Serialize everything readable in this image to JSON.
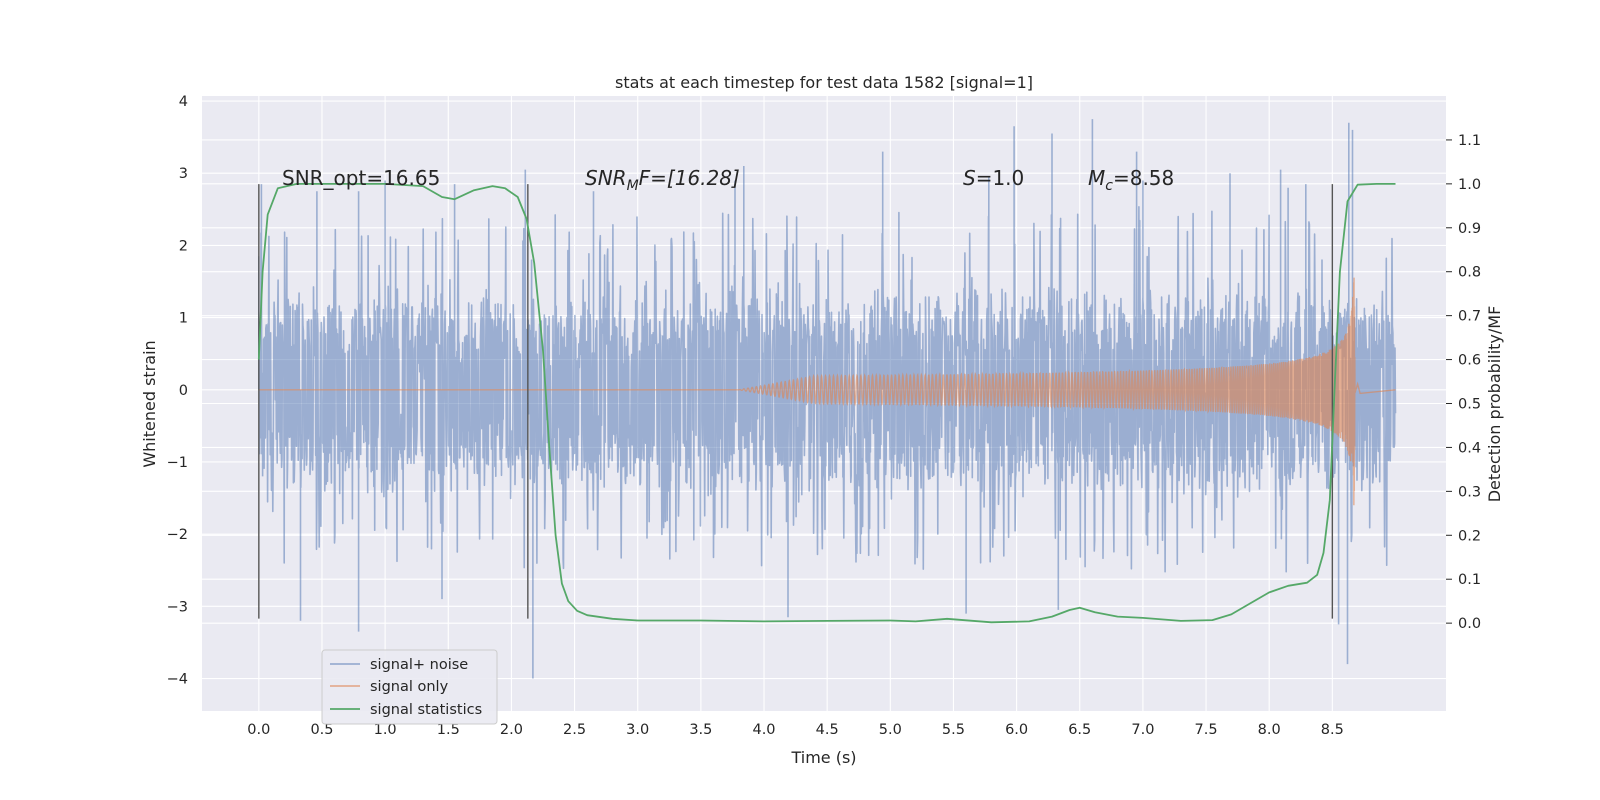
{
  "chart_data": {
    "type": "line",
    "title": "stats at each timestep for test data 1582 [signal=1]",
    "xlabel": "Time (s)",
    "ylabel": "Whitened strain",
    "ylabel_right": "Detection probability/MF",
    "xlim": [
      -0.45,
      9.4
    ],
    "ylim": [
      -4.45,
      4.07
    ],
    "ylim_right": [
      -0.2,
      1.2
    ],
    "x_ticks": [
      "0.0",
      "0.5",
      "1.0",
      "1.5",
      "2.0",
      "2.5",
      "3.0",
      "3.5",
      "4.0",
      "4.5",
      "5.0",
      "5.5",
      "6.0",
      "6.5",
      "7.0",
      "7.5",
      "8.0",
      "8.5"
    ],
    "y_ticks": [
      "−4",
      "−3",
      "−2",
      "−1",
      "0",
      "1",
      "2",
      "3",
      "4"
    ],
    "y_right_ticks": [
      "0.0",
      "0.1",
      "0.2",
      "0.3",
      "0.4",
      "0.5",
      "0.6",
      "0.7",
      "0.8",
      "0.9",
      "1.0",
      "1.1"
    ],
    "grid": true,
    "legend_position": "lower-left",
    "annotations": {
      "snr_opt": "SNR_opt=16.65",
      "snr_mf_main": "SNR",
      "snr_mf_sub": "M",
      "snr_mf_rest": "F=[16.28]",
      "s_main": "S",
      "s_rest": "=1.0",
      "mc_main": "M",
      "mc_sub": "c",
      "mc_rest": "=8.58"
    },
    "vertical_markers": [
      0.0,
      2.13,
      8.5
    ],
    "series": [
      {
        "name": "signal+ noise",
        "color": "#4c72b0",
        "duration": 9.0,
        "envelope_upper": [
          [
            0.0,
            1.55
          ],
          [
            2.0,
            1.6
          ],
          [
            4.0,
            1.6
          ],
          [
            6.0,
            1.65
          ],
          [
            8.0,
            1.65
          ],
          [
            9.0,
            1.55
          ]
        ],
        "envelope_lower": [
          [
            0.0,
            -1.6
          ],
          [
            2.0,
            -1.65
          ],
          [
            4.0,
            -1.65
          ],
          [
            6.0,
            -1.7
          ],
          [
            8.0,
            -1.7
          ],
          [
            9.0,
            -1.65
          ]
        ],
        "peaks": [
          [
            0.0,
            1.85
          ],
          [
            0.02,
            2.85
          ],
          [
            0.03,
            -1.2
          ],
          [
            0.33,
            -3.2
          ],
          [
            0.46,
            2.75
          ],
          [
            0.79,
            -3.35
          ],
          [
            0.79,
            2.75
          ],
          [
            1.0,
            2.9
          ],
          [
            1.45,
            -2.9
          ],
          [
            1.55,
            2.85
          ],
          [
            2.11,
            3.05
          ],
          [
            2.17,
            -4.0
          ],
          [
            2.65,
            2.75
          ],
          [
            3.77,
            2.9
          ],
          [
            3.84,
            3.1
          ],
          [
            4.19,
            -3.15
          ],
          [
            4.94,
            3.3
          ],
          [
            5.6,
            -3.1
          ],
          [
            5.78,
            2.95
          ],
          [
            5.98,
            3.65
          ],
          [
            6.28,
            3.55
          ],
          [
            6.33,
            -3.05
          ],
          [
            6.6,
            3.75
          ],
          [
            6.95,
            3.3
          ],
          [
            7.0,
            2.9
          ],
          [
            7.69,
            3.0
          ],
          [
            8.09,
            3.05
          ],
          [
            8.15,
            2.8
          ],
          [
            8.29,
            2.85
          ],
          [
            8.55,
            -3.25
          ],
          [
            8.62,
            -3.8
          ],
          [
            8.63,
            3.7
          ],
          [
            8.66,
            3.6
          ]
        ]
      },
      {
        "name": "signal only",
        "color": "#dd8452",
        "chirp_start": 3.8,
        "merger": 8.68,
        "peak_amplitude": 1.6,
        "end": 9.0
      },
      {
        "name": "signal statistics",
        "color": "#55a868",
        "axis": "right",
        "points": [
          [
            0.0,
            0.6
          ],
          [
            0.03,
            0.8
          ],
          [
            0.07,
            0.93
          ],
          [
            0.15,
            0.99
          ],
          [
            0.3,
            1.0
          ],
          [
            0.6,
            1.0
          ],
          [
            1.0,
            1.0
          ],
          [
            1.3,
            0.995
          ],
          [
            1.45,
            0.97
          ],
          [
            1.55,
            0.965
          ],
          [
            1.7,
            0.985
          ],
          [
            1.85,
            0.995
          ],
          [
            1.95,
            0.99
          ],
          [
            2.05,
            0.97
          ],
          [
            2.12,
            0.92
          ],
          [
            2.18,
            0.82
          ],
          [
            2.25,
            0.62
          ],
          [
            2.3,
            0.4
          ],
          [
            2.35,
            0.2
          ],
          [
            2.4,
            0.09
          ],
          [
            2.45,
            0.05
          ],
          [
            2.52,
            0.028
          ],
          [
            2.6,
            0.018
          ],
          [
            2.8,
            0.01
          ],
          [
            3.0,
            0.006
          ],
          [
            3.5,
            0.006
          ],
          [
            4.0,
            0.004
          ],
          [
            4.5,
            0.005
          ],
          [
            5.0,
            0.006
          ],
          [
            5.2,
            0.004
          ],
          [
            5.45,
            0.01
          ],
          [
            5.8,
            0.002
          ],
          [
            6.1,
            0.004
          ],
          [
            6.28,
            0.015
          ],
          [
            6.42,
            0.03
          ],
          [
            6.5,
            0.035
          ],
          [
            6.62,
            0.025
          ],
          [
            6.8,
            0.015
          ],
          [
            7.0,
            0.012
          ],
          [
            7.3,
            0.005
          ],
          [
            7.55,
            0.007
          ],
          [
            7.7,
            0.02
          ],
          [
            7.85,
            0.045
          ],
          [
            8.0,
            0.07
          ],
          [
            8.15,
            0.085
          ],
          [
            8.3,
            0.092
          ],
          [
            8.38,
            0.11
          ],
          [
            8.43,
            0.16
          ],
          [
            8.48,
            0.28
          ],
          [
            8.52,
            0.55
          ],
          [
            8.56,
            0.8
          ],
          [
            8.62,
            0.96
          ],
          [
            8.7,
            0.998
          ],
          [
            8.85,
            1.0
          ],
          [
            9.0,
            1.0
          ]
        ]
      }
    ]
  }
}
